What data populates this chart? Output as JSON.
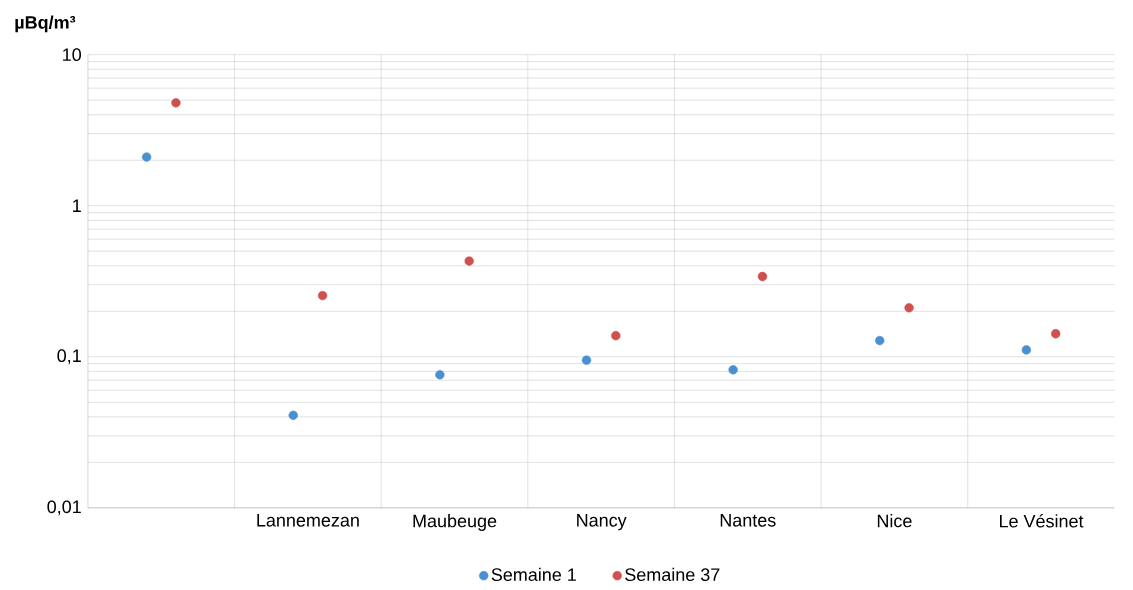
{
  "chart_data": {
    "type": "scatter",
    "ylabel": "µBq/m³",
    "categories": [
      null,
      "Lannemezan",
      "Maubeuge",
      "Nancy",
      "Nantes",
      "Nice",
      "Le Vésinet"
    ],
    "series": [
      {
        "name": "Semaine 1",
        "color": "#4a90d0",
        "values": [
          2.1,
          0.041,
          0.076,
          0.095,
          0.082,
          0.128,
          0.111
        ]
      },
      {
        "name": "Semaine 37",
        "color": "#d05050",
        "values": [
          4.8,
          0.254,
          0.43,
          0.138,
          0.34,
          0.211,
          0.142
        ]
      }
    ],
    "log": "y",
    "ylim": [
      0.01,
      10
    ],
    "yticks": [
      {
        "value": 0.01,
        "label": "0,01"
      },
      {
        "value": 0.1,
        "label": "0,1"
      },
      {
        "value": 1,
        "label": "1"
      },
      {
        "value": 10,
        "label": "10"
      }
    ],
    "grid": true,
    "legend": "bottom"
  }
}
